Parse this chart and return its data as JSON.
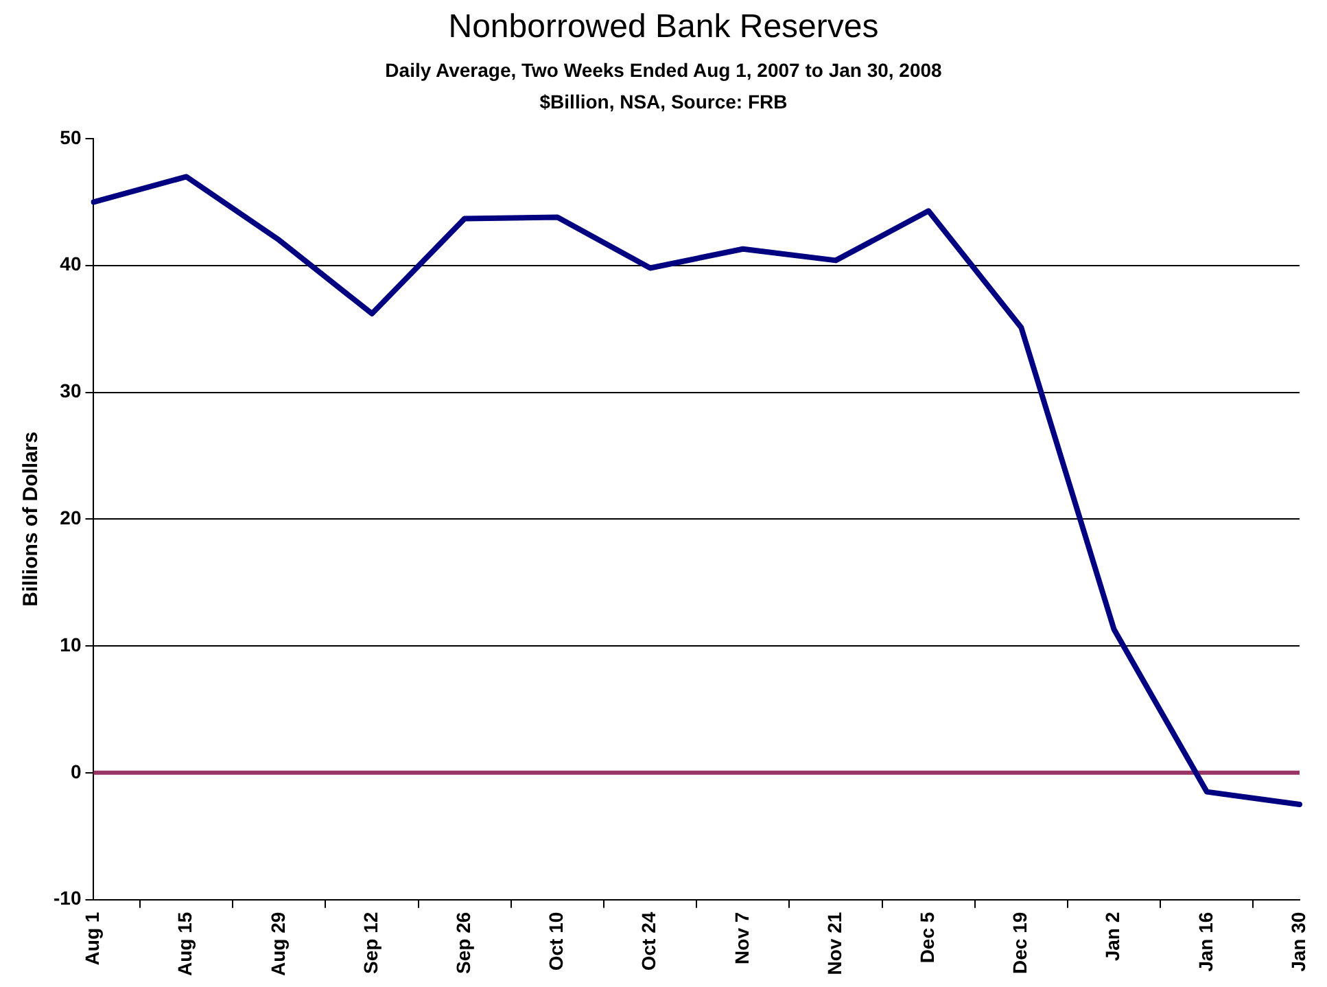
{
  "chart_data": {
    "type": "line",
    "title": "Nonborrowed Bank Reserves",
    "subtitle": "Daily Average, Two Weeks Ended Aug 1, 2007 to Jan 30, 2008\n$Billion, NSA, Source: FRB",
    "ylabel": "Billions of Dollars",
    "categories": [
      "Aug 1",
      "Aug 15",
      "Aug 29",
      "Sep 12",
      "Sep 26",
      "Oct 10",
      "Oct 24",
      "Nov 7",
      "Nov 21",
      "Dec 5",
      "Dec 19",
      "Jan 2",
      "Jan 16",
      "Jan 30"
    ],
    "series": [
      {
        "color": "#000080",
        "values": [
          45,
          47,
          42,
          36.2,
          43.7,
          43.8,
          39.8,
          41.3,
          40.4,
          44.3,
          35.1,
          11.3,
          -1.5,
          -2.5
        ]
      }
    ],
    "ylim": [
      -10,
      50
    ],
    "yticks": [
      -10,
      0,
      10,
      20,
      30,
      40,
      50
    ],
    "grid": "y",
    "legend": false,
    "marker": "none",
    "line_style": "solid",
    "ref_lines": [
      {
        "axis": "y",
        "value": 0,
        "color": "#993366"
      }
    ]
  }
}
